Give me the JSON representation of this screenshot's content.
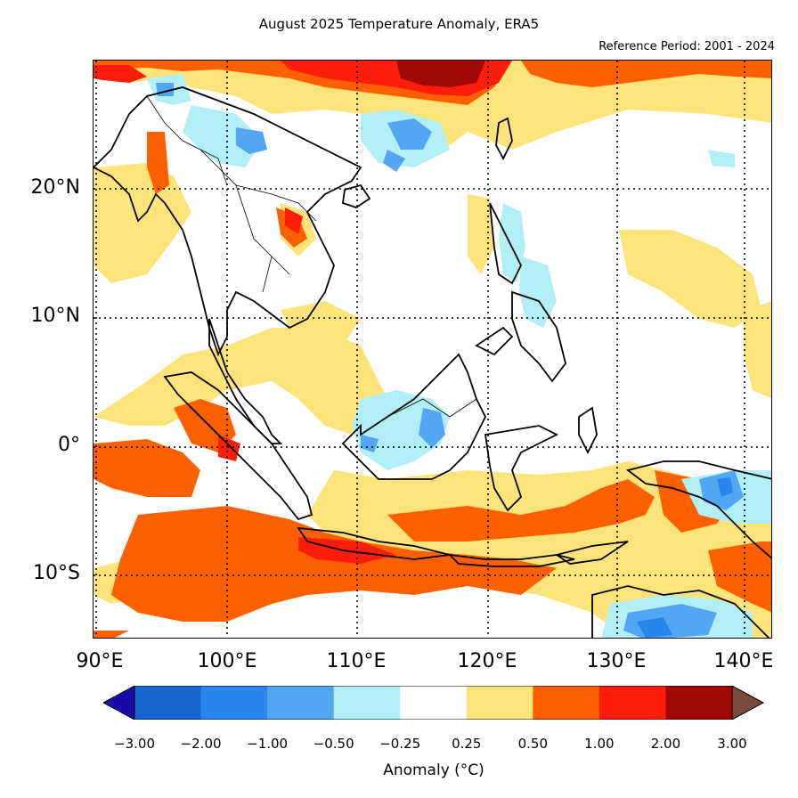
{
  "title": "August 2025 Temperature Anomaly, ERA5",
  "reference": "Reference Period: 2001 - 2024",
  "map": {
    "lat_labels": [
      "20°N",
      "10°N",
      "0°",
      "10°S"
    ],
    "lon_labels": [
      "90°E",
      "100°E",
      "110°E",
      "120°E",
      "130°E",
      "140°E"
    ],
    "gridlines": "dotted"
  },
  "colorbar": {
    "label": "Anomaly (°C)",
    "ticks": [
      "−3.00",
      "−2.00",
      "−1.00",
      "−0.50",
      "−0.25",
      "0.25",
      "0.50",
      "1.00",
      "2.00",
      "3.00"
    ],
    "colors": [
      "#1a0aa8",
      "#1865d0",
      "#2a86ec",
      "#52a6f2",
      "#b2eef6",
      "#ffffff",
      "#fde47a",
      "#fd6000",
      "#fc1d0a",
      "#9e0805",
      "#7a4a3e"
    ]
  }
}
